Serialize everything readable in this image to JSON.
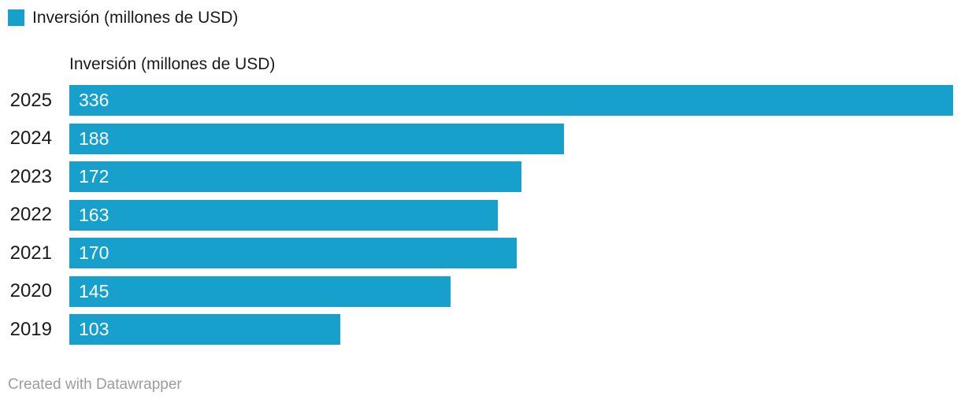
{
  "legend": {
    "label": "Inversión (millones de USD)",
    "color": "#18a0cc",
    "position": "top-left"
  },
  "chart_data": {
    "type": "bar",
    "orientation": "horizontal",
    "title": "",
    "column_header": "Inversión (millones de USD)",
    "categories": [
      "2025",
      "2024",
      "2023",
      "2022",
      "2021",
      "2020",
      "2019"
    ],
    "values": [
      336,
      188,
      172,
      163,
      170,
      145,
      103
    ],
    "xlabel": "",
    "ylabel": "",
    "xlim": [
      0,
      336
    ],
    "grid": false,
    "bar_color": "#18a0cc",
    "value_label_color": "#ffffff",
    "category_label_color": "#1a1a1a"
  },
  "footer": {
    "credit": "Created with Datawrapper"
  }
}
